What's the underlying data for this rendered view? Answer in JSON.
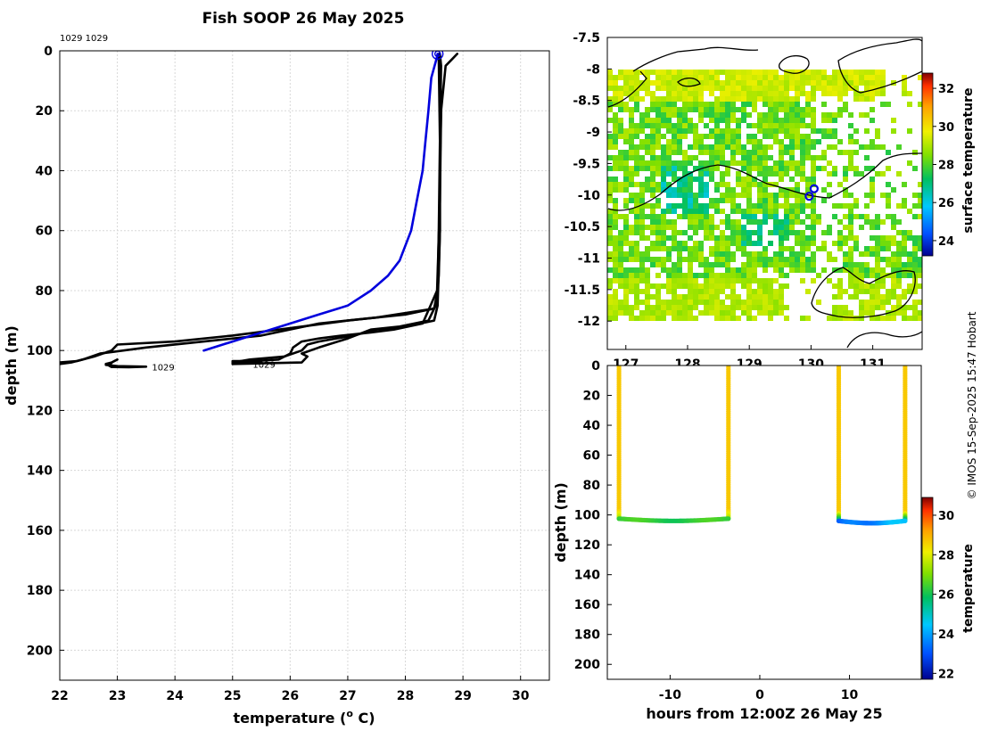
{
  "title": "Fish SOOP 26 May 2025",
  "credit": "© IMOS 15-Sep-2025 15:47 Hobart",
  "colors": {
    "profile_black": "#000000",
    "profile_blue": "#0000dd",
    "coast": "#000000"
  },
  "chart_data": [
    {
      "type": "line",
      "name": "temperature-depth profiles",
      "xlabel": "temperature (° C)",
      "xlabel_main": "temperature (",
      "xlabel_sup": "o",
      "xlabel_end": " C)",
      "ylabel": "depth (m)",
      "xlim": [
        22,
        30.5
      ],
      "ylim": [
        0,
        210
      ],
      "y_inverted": true,
      "grid": true,
      "x_ticks": [
        22,
        23,
        24,
        25,
        26,
        27,
        28,
        29,
        30
      ],
      "y_ticks": [
        0,
        20,
        40,
        60,
        80,
        100,
        120,
        140,
        160,
        180,
        200
      ],
      "annotations": [
        {
          "text": "1029 1029",
          "x": 22.0,
          "y": -4.5
        },
        {
          "text": "1029",
          "x": 23.6,
          "y": 105.5
        },
        {
          "text": "1029",
          "x": 25.35,
          "y": 104.5
        }
      ],
      "marker": {
        "x": 28.56,
        "y": 1
      },
      "series": [
        {
          "name": "latest",
          "color": "#0000dd",
          "x": [
            28.56,
            28.55,
            28.45,
            28.4,
            28.35,
            28.3,
            28.2,
            28.1,
            27.9,
            27.7,
            27.4,
            27.0,
            26.5,
            26.0,
            25.5,
            25.0,
            24.5
          ],
          "y": [
            1,
            2,
            9,
            20,
            30,
            40,
            50,
            60,
            70,
            75,
            80,
            85,
            88,
            91,
            94,
            97,
            100
          ]
        },
        {
          "name": "profile-1",
          "color": "#000000",
          "x": [
            28.9,
            28.7,
            28.62,
            28.6,
            28.6,
            28.58,
            28.55,
            28.5,
            28.0,
            27.0,
            25.0,
            24.0,
            23.0,
            22.9,
            22.6,
            22.3,
            22.0
          ],
          "y": [
            1,
            5,
            20,
            40,
            60,
            75,
            82,
            86,
            88,
            90,
            95,
            97,
            98,
            100,
            102,
            103.5,
            104
          ]
        },
        {
          "name": "profile-2",
          "color": "#000000",
          "x": [
            28.6,
            28.62,
            28.6,
            28.58,
            28.56,
            28.5,
            27.5,
            26.5,
            25.5,
            24.5,
            23.5,
            22.7,
            22.4,
            22.2,
            22.0
          ],
          "y": [
            1,
            5,
            30,
            60,
            80,
            86,
            89,
            91,
            95,
            97,
            99,
            101,
            103,
            104,
            104.5
          ]
        },
        {
          "name": "profile-3",
          "color": "#000000",
          "x": [
            28.58,
            28.6,
            28.6,
            28.58,
            28.55,
            28.4,
            27.9,
            27.4,
            27.0,
            26.5,
            26.2,
            26.3,
            26.2,
            25.0,
            25.0,
            25.5,
            25.2
          ],
          "y": [
            1,
            10,
            40,
            70,
            84,
            90,
            92,
            93,
            96,
            99,
            101,
            102,
            104,
            104.5,
            103.5,
            103.5,
            104
          ]
        },
        {
          "name": "profile-4",
          "color": "#000000",
          "x": [
            28.6,
            28.62,
            28.6,
            28.55,
            28.3,
            27.8,
            27.4,
            26.9,
            26.5,
            26.2,
            26.05,
            26.0,
            25.8,
            25.0
          ],
          "y": [
            2,
            20,
            50,
            80,
            91,
            93,
            94,
            95,
            96,
            97,
            99,
            101,
            103,
            104
          ]
        },
        {
          "name": "profile-5",
          "color": "#000000",
          "x": [
            28.58,
            28.6,
            28.6,
            28.56,
            28.5,
            28.0,
            27.5,
            27.1,
            26.8,
            26.5,
            26.3,
            26.2,
            25.9,
            25.3,
            25.0
          ],
          "y": [
            3,
            30,
            60,
            85,
            90,
            92,
            93,
            95,
            96,
            97,
            98,
            100,
            102,
            103,
            104
          ]
        },
        {
          "name": "profile-6",
          "color": "#000000",
          "x": [
            23.0,
            22.9,
            22.8,
            22.85,
            22.9,
            23.2,
            23.5,
            23.0,
            22.8,
            22.9
          ],
          "y": [
            103,
            104,
            104.5,
            105,
            105.5,
            105.6,
            105.4,
            105.2,
            104.8,
            104.2
          ]
        }
      ]
    },
    {
      "type": "heatmap",
      "name": "surface temperature map",
      "x_ticks": [
        127,
        128,
        129,
        130,
        131
      ],
      "y_ticks": [
        -7.5,
        -8,
        -8.5,
        -9,
        -9.5,
        -10,
        -10.5,
        -11,
        -11.5,
        -12
      ],
      "xlim": [
        126.7,
        131.8
      ],
      "ylim": [
        -12.45,
        -7.5
      ],
      "colorbar_label": "surface temperature",
      "colorbar_ticks": [
        24,
        26,
        28,
        30,
        32
      ],
      "colorbar_range": [
        23.2,
        32.8
      ],
      "markers": [
        {
          "lon": 130.05,
          "lat": -9.9
        },
        {
          "lon": 129.97,
          "lat": -10.02
        }
      ]
    },
    {
      "type": "scatter",
      "name": "depth vs time",
      "xlabel": "hours from 12:00Z 26 May 25",
      "ylabel": "depth (m)",
      "xlim": [
        -17,
        18
      ],
      "ylim": [
        0,
        210
      ],
      "y_inverted": true,
      "x_ticks": [
        -10,
        0,
        10
      ],
      "y_ticks": [
        0,
        20,
        40,
        60,
        80,
        100,
        120,
        140,
        160,
        180,
        200
      ],
      "colorbar_label": "temperature",
      "colorbar_ticks": [
        22,
        24,
        26,
        28,
        30
      ],
      "colorbar_range": [
        21.7,
        30.9
      ],
      "tracks": [
        {
          "x_start": -15.7,
          "x_end": -3.5,
          "bottom_depth": 102.5,
          "sag": 1.5,
          "bottom_temp": 26.0
        },
        {
          "x_start": 8.8,
          "x_end": 16.2,
          "bottom_depth": 104,
          "sag": 1.5,
          "bottom_temp": 23.5
        }
      ]
    }
  ]
}
